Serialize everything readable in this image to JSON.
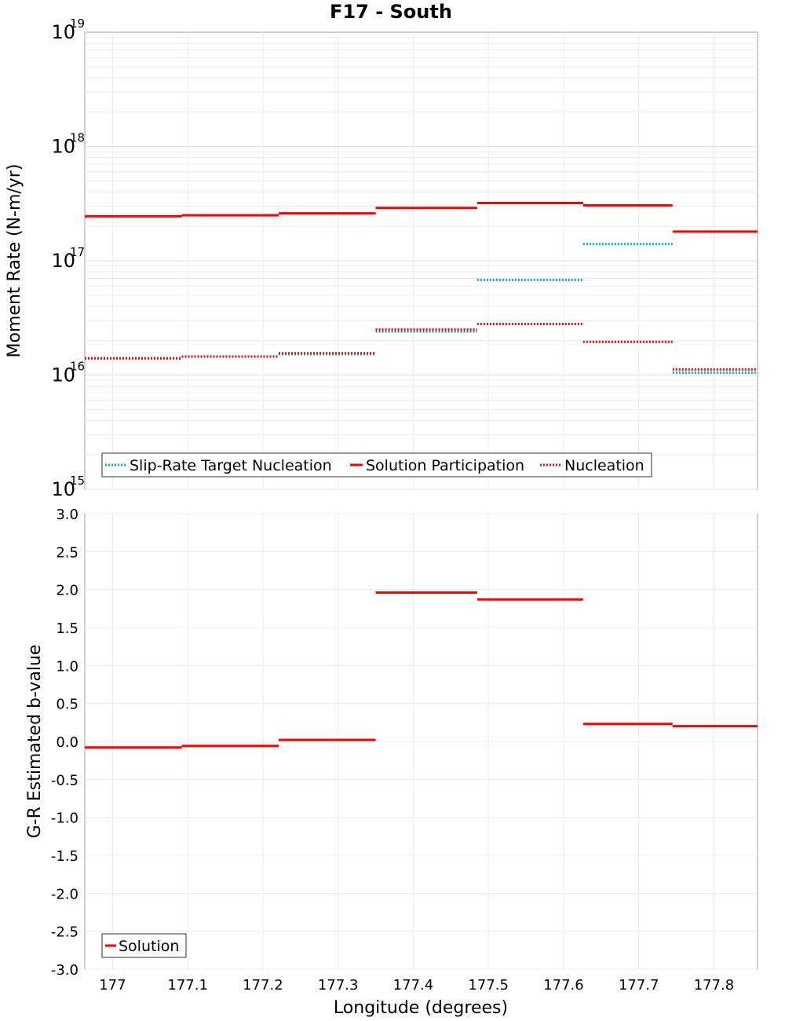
{
  "chart_data": [
    {
      "type": "line",
      "title": "F17 - South",
      "xlabel": "",
      "ylabel": "Moment Rate (N-m/yr)",
      "yscale": "log",
      "ylim": [
        1000000000000000.0,
        1e+19
      ],
      "xlim": [
        176.963,
        177.858
      ],
      "grid": true,
      "legend_position": "bottom-left",
      "y_tick_labels": [
        {
          "base": "10",
          "exp": "15"
        },
        {
          "base": "10",
          "exp": "16"
        },
        {
          "base": "10",
          "exp": "17"
        },
        {
          "base": "10",
          "exp": "18"
        },
        {
          "base": "10",
          "exp": "19"
        }
      ],
      "segments_x": [
        [
          176.963,
          177.092
        ],
        [
          177.092,
          177.221
        ],
        [
          177.221,
          177.35
        ],
        [
          177.35,
          177.485
        ],
        [
          177.485,
          177.626
        ],
        [
          177.626,
          177.745
        ],
        [
          177.745,
          177.858
        ]
      ],
      "series": [
        {
          "name": "Slip-Rate Target Nucleation",
          "style": "dotted",
          "color": "#00b4b4",
          "values": [
            1.4e+16,
            1.45e+16,
            1.52e+16,
            2.4e+16,
            6.8e+16,
            1.4e+17,
            1.05e+16
          ]
        },
        {
          "name": "Solution Participation",
          "style": "solid",
          "color": "#ff0000",
          "values": [
            2.45e+17,
            2.5e+17,
            2.6e+17,
            2.9e+17,
            3.2e+17,
            3.05e+17,
            1.8e+17
          ]
        },
        {
          "name": "Nucleation",
          "style": "dotted",
          "color": "#ff0000",
          "values": [
            1.4e+16,
            1.45e+16,
            1.55e+16,
            2.5e+16,
            2.8e+16,
            1.95e+16,
            1.12e+16
          ]
        }
      ]
    },
    {
      "type": "line",
      "title": "",
      "xlabel": "Longitude (degrees)",
      "ylabel": "G-R Estimated b-value",
      "ylim": [
        -3.0,
        3.0
      ],
      "xlim": [
        176.963,
        177.858
      ],
      "grid": true,
      "legend_position": "bottom-left",
      "y_tick_labels": [
        "3.0",
        "2.5",
        "2.0",
        "1.5",
        "1.0",
        "0.5",
        "0.0",
        "-0.5",
        "-1.0",
        "-1.5",
        "-2.0",
        "-2.5",
        "-3.0"
      ],
      "x_tick_labels": [
        "177",
        "177.1",
        "177.2",
        "177.3",
        "177.4",
        "177.5",
        "177.6",
        "177.7",
        "177.8"
      ],
      "segments_x": [
        [
          176.963,
          177.092
        ],
        [
          177.092,
          177.221
        ],
        [
          177.221,
          177.35
        ],
        [
          177.35,
          177.485
        ],
        [
          177.485,
          177.626
        ],
        [
          177.626,
          177.745
        ],
        [
          177.745,
          177.858
        ]
      ],
      "series": [
        {
          "name": "Solution",
          "style": "solid",
          "color": "#ff0000",
          "values": [
            -0.08,
            -0.06,
            0.02,
            1.96,
            1.87,
            0.23,
            0.2
          ]
        }
      ]
    }
  ]
}
